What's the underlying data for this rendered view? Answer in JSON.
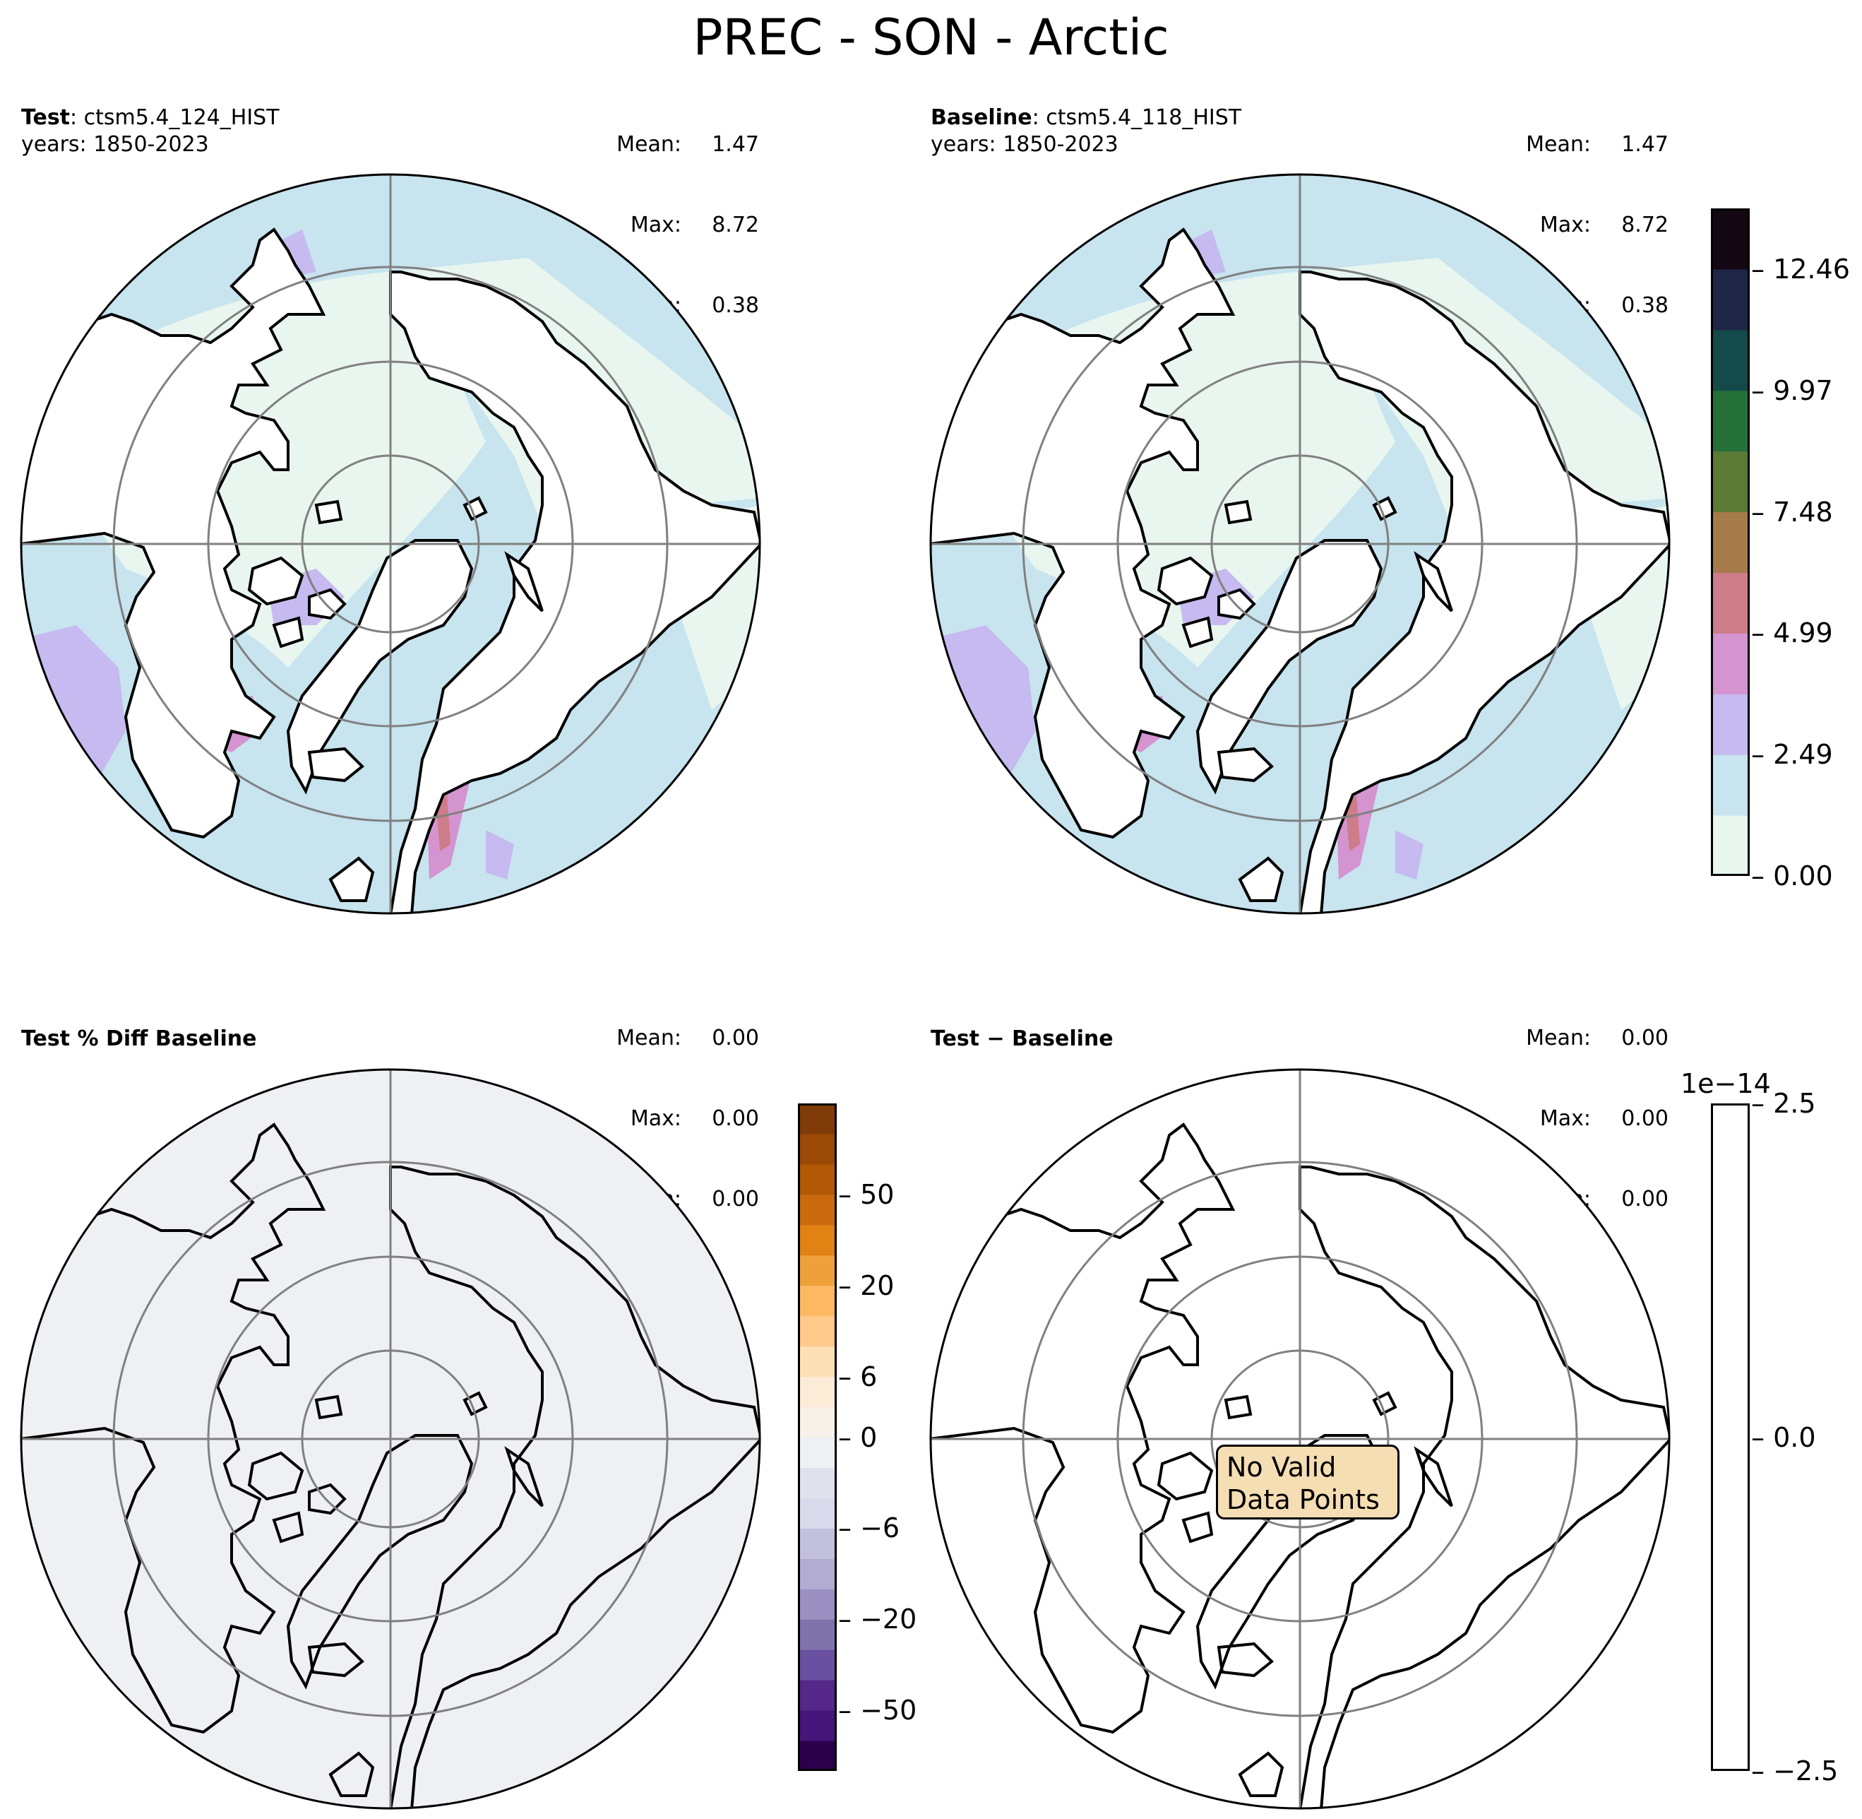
{
  "suptitle": "PREC - SON - Arctic",
  "panels": {
    "test": {
      "label_bold": "Test",
      "label_rest": ": ctsm5.4_124_HIST",
      "years": "years: 1850-2023",
      "stats": {
        "mean_label": "Mean:",
        "mean": "1.47",
        "max_label": "Max:",
        "max": "8.72",
        "min_label": "Min:",
        "min": "0.38"
      }
    },
    "baseline": {
      "label_bold": "Baseline",
      "label_rest": ": ctsm5.4_118_HIST",
      "years": "years: 1850-2023",
      "stats": {
        "mean_label": "Mean:",
        "mean": "1.47",
        "max_label": "Max:",
        "max": "8.72",
        "min_label": "Min:",
        "min": "0.38"
      }
    },
    "pct_diff": {
      "label_bold": "Test % Diff Baseline",
      "stats": {
        "mean_label": "Mean:",
        "mean": "0.00",
        "max_label": "Max:",
        "max": "0.00",
        "min_label": "Min:",
        "min": "0.00"
      }
    },
    "diff": {
      "label_bold": "Test − Baseline",
      "stats": {
        "mean_label": "Mean:",
        "mean": "0.00",
        "max_label": "Max:",
        "max": "0.00",
        "min_label": "Min:",
        "min": "0.00"
      },
      "message_line1": "No Valid",
      "message_line2": "Data Points"
    }
  },
  "colorbars": {
    "prec": {
      "ticks": [
        "0.00",
        "2.49",
        "4.99",
        "7.48",
        "9.97",
        "12.46"
      ],
      "colors": [
        "#e8f6ef",
        "#c7e4ef",
        "#c6baf0",
        "#d494cf",
        "#cd7c89",
        "#a67b4c",
        "#5a7a35",
        "#257039",
        "#144a4a",
        "#1e2547",
        "#130812"
      ]
    },
    "pct": {
      "ticks": [
        "50",
        "20",
        "6",
        "0",
        "−6",
        "−20",
        "−50"
      ],
      "colors": [
        "#7f3b08",
        "#9a4a06",
        "#b35806",
        "#c96a0e",
        "#e08214",
        "#eea13b",
        "#fdb863",
        "#fec98a",
        "#fee0b6",
        "#fcebd6",
        "#f7f1ea",
        "#eef0f4",
        "#e1e1ee",
        "#d8daeb",
        "#c3c0dd",
        "#b2abd2",
        "#9c90c3",
        "#8073ac",
        "#6a50a0",
        "#542788",
        "#45157a",
        "#2d004b"
      ]
    },
    "diff": {
      "offset": "1e−14",
      "ticks": [
        "2.5",
        "0.0",
        "−2.5"
      ]
    }
  },
  "colors": {
    "land_edge": "#000000",
    "grid": "#808080",
    "pct_fill": "#eef0f4",
    "nodata_box": "#f5deb3"
  }
}
